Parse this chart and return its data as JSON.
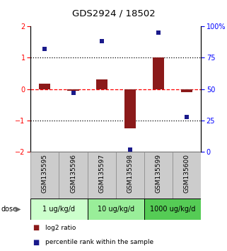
{
  "title": "GDS2924 / 18502",
  "samples": [
    "GSM135595",
    "GSM135596",
    "GSM135597",
    "GSM135598",
    "GSM135599",
    "GSM135600"
  ],
  "log2_ratio": [
    0.18,
    -0.05,
    0.3,
    -1.25,
    1.0,
    -0.1
  ],
  "percentile_rank": [
    82,
    47,
    88,
    2,
    95,
    28
  ],
  "ylim_left": [
    -2,
    2
  ],
  "ylim_right": [
    0,
    100
  ],
  "bar_color": "#8B1A1A",
  "dot_color": "#1A1A8B",
  "dose_groups": [
    {
      "label": "1 ug/kg/d",
      "samples": 2,
      "color": "#ccffcc"
    },
    {
      "label": "10 ug/kg/d",
      "samples": 2,
      "color": "#99ee99"
    },
    {
      "label": "1000 ug/kg/d",
      "samples": 2,
      "color": "#55cc55"
    }
  ],
  "background_color": "#ffffff",
  "bar_width": 0.4
}
